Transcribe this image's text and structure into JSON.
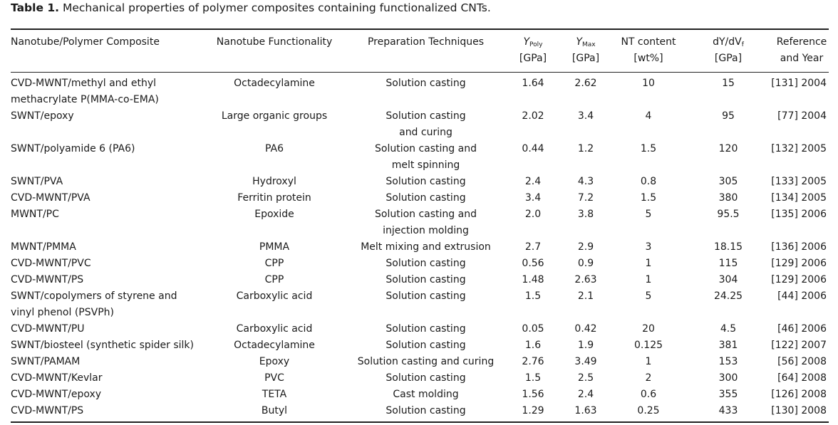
{
  "caption": {
    "label": "Table 1.",
    "text": "Mechanical properties of polymer composites containing functionalized CNTs."
  },
  "headers": {
    "composite": "Nanotube/Polymer Composite",
    "functionality": "Nanotube Functionality",
    "technique": "Preparation Techniques",
    "ypoly_sym": "Y",
    "ypoly_sub": "Poly",
    "ypoly_unit": "[GPa]",
    "ymax_sym": "Y",
    "ymax_sub": "Max",
    "ymax_unit": "[GPa]",
    "nt_line1": "NT content",
    "nt_line2": "[wt%]",
    "dydv_a": "dY/dV",
    "dydv_sub": "f",
    "dydv_unit": "[GPa]",
    "ref_line1": "Reference",
    "ref_line2": "and Year"
  },
  "rows": [
    {
      "composite": [
        "CVD-MWNT/methyl and ethyl",
        "methacrylate P(MMA-co-EMA)"
      ],
      "functionality": "Octadecylamine",
      "technique": [
        "Solution casting"
      ],
      "ypoly": "1.64",
      "ymax": "2.62",
      "nt": "10",
      "dydv": "15",
      "ref": "[131] 2004"
    },
    {
      "composite": [
        "SWNT/epoxy"
      ],
      "functionality": "Large organic groups",
      "technique": [
        "Solution casting",
        "and curing"
      ],
      "ypoly": "2.02",
      "ymax": "3.4",
      "nt": "4",
      "dydv": "95",
      "ref": "[77] 2004"
    },
    {
      "composite": [
        "SWNT/polyamide 6 (PA6)"
      ],
      "functionality": "PA6",
      "technique": [
        "Solution casting and",
        "melt spinning"
      ],
      "ypoly": "0.44",
      "ymax": "1.2",
      "nt": "1.5",
      "dydv": "120",
      "ref": "[132] 2005"
    },
    {
      "composite": [
        "SWNT/PVA"
      ],
      "functionality": "Hydroxyl",
      "technique": [
        "Solution casting"
      ],
      "ypoly": "2.4",
      "ymax": "4.3",
      "nt": "0.8",
      "dydv": "305",
      "ref": "[133] 2005"
    },
    {
      "composite": [
        "CVD-MWNT/PVA"
      ],
      "functionality": "Ferritin protein",
      "technique": [
        "Solution casting"
      ],
      "ypoly": "3.4",
      "ymax": "7.2",
      "nt": "1.5",
      "dydv": "380",
      "ref": "[134] 2005"
    },
    {
      "composite": [
        "MWNT/PC"
      ],
      "functionality": "Epoxide",
      "technique": [
        "Solution casting and",
        "injection molding"
      ],
      "ypoly": "2.0",
      "ymax": "3.8",
      "nt": "5",
      "dydv": "95.5",
      "ref": "[135] 2006"
    },
    {
      "composite": [
        "MWNT/PMMA"
      ],
      "functionality": "PMMA",
      "technique": [
        "Melt mixing and extrusion"
      ],
      "ypoly": "2.7",
      "ymax": "2.9",
      "nt": "3",
      "dydv": "18.15",
      "ref": "[136] 2006"
    },
    {
      "composite": [
        "CVD-MWNT/PVC"
      ],
      "functionality": "CPP",
      "technique": [
        "Solution casting"
      ],
      "ypoly": "0.56",
      "ymax": "0.9",
      "nt": "1",
      "dydv": "115",
      "ref": "[129] 2006"
    },
    {
      "composite": [
        "CVD-MWNT/PS"
      ],
      "functionality": "CPP",
      "technique": [
        "Solution casting"
      ],
      "ypoly": "1.48",
      "ymax": "2.63",
      "nt": "1",
      "dydv": "304",
      "ref": "[129] 2006"
    },
    {
      "composite": [
        "SWNT/copolymers of styrene and",
        "vinyl phenol (PSVPh)"
      ],
      "functionality": "Carboxylic acid",
      "technique": [
        "Solution casting"
      ],
      "ypoly": "1.5",
      "ymax": "2.1",
      "nt": "5",
      "dydv": "24.25",
      "ref": "[44] 2006"
    },
    {
      "composite": [
        "CVD-MWNT/PU"
      ],
      "functionality": "Carboxylic acid",
      "technique": [
        "Solution casting"
      ],
      "ypoly": "0.05",
      "ymax": "0.42",
      "nt": "20",
      "dydv": "4.5",
      "ref": "[46] 2006"
    },
    {
      "composite": [
        "SWNT/biosteel (synthetic spider silk)"
      ],
      "functionality": "Octadecylamine",
      "technique": [
        "Solution casting"
      ],
      "ypoly": "1.6",
      "ymax": "1.9",
      "nt": "0.125",
      "dydv": "381",
      "ref": "[122] 2007"
    },
    {
      "composite": [
        "SWNT/PAMAM"
      ],
      "functionality": "Epoxy",
      "technique": [
        "Solution casting and curing"
      ],
      "ypoly": "2.76",
      "ymax": "3.49",
      "nt": "1",
      "dydv": "153",
      "ref": "[56] 2008"
    },
    {
      "composite": [
        "CVD-MWNT/Kevlar"
      ],
      "functionality": "PVC",
      "technique": [
        "Solution casting"
      ],
      "ypoly": "1.5",
      "ymax": "2.5",
      "nt": "2",
      "dydv": "300",
      "ref": "[64] 2008"
    },
    {
      "composite": [
        "CVD-MWNT/epoxy"
      ],
      "functionality": "TETA",
      "technique": [
        "Cast molding"
      ],
      "ypoly": "1.56",
      "ymax": "2.4",
      "nt": "0.6",
      "dydv": "355",
      "ref": "[126] 2008"
    },
    {
      "composite": [
        "CVD-MWNT/PS"
      ],
      "functionality": "Butyl",
      "technique": [
        "Solution casting"
      ],
      "ypoly": "1.29",
      "ymax": "1.63",
      "nt": "0.25",
      "dydv": "433",
      "ref": "[130] 2008"
    }
  ]
}
